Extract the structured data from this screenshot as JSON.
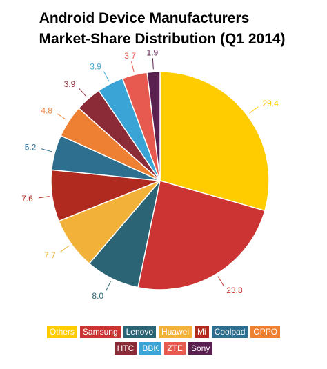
{
  "chart_data": {
    "type": "pie",
    "title_lines": [
      "Android Device Manufacturers",
      "Market-Share Distribution (Q1 2014)"
    ],
    "categories": [
      "Others",
      "Samsung",
      "Lenovo",
      "Huawei",
      "Mi",
      "Coolpad",
      "OPPO",
      "HTC",
      "BBK",
      "ZTE",
      "Sony"
    ],
    "values": [
      29.4,
      23.8,
      8.0,
      7.7,
      7.6,
      5.2,
      4.8,
      3.9,
      3.9,
      3.7,
      1.9
    ],
    "value_labels": [
      "29.4",
      "23.8",
      "8.0",
      "7.7",
      "7.6",
      "5.2",
      "4.8",
      "3.9",
      "3.9",
      "3.7",
      "1.9"
    ],
    "colors": [
      "#ffcc00",
      "#cc3333",
      "#2b6475",
      "#f2b23a",
      "#b02a20",
      "#2e6f90",
      "#ee8033",
      "#8c2b38",
      "#3aa4d6",
      "#e75a50",
      "#5a2050"
    ],
    "legend_placement": "bottom",
    "legend_rows": [
      [
        "Others",
        "Samsung",
        "Lenovo",
        "Huawei",
        "Mi",
        "Coolpad",
        "OPPO"
      ],
      [
        "HTC",
        "BBK",
        "ZTE",
        "Sony"
      ]
    ]
  }
}
